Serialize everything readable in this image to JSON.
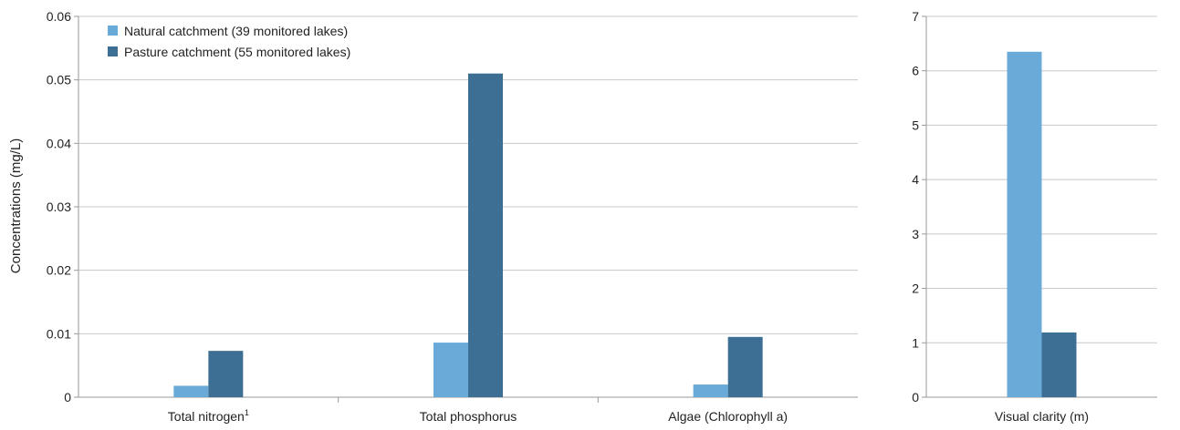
{
  "chart_data": [
    {
      "type": "bar",
      "ylabel": "Concentrations (mg/L)",
      "ylim": [
        0,
        0.06
      ],
      "yticks": [
        "0",
        "0.01",
        "0.02",
        "0.03",
        "0.04",
        "0.05",
        "0.06"
      ],
      "categories": [
        "Total nitrogen",
        "Total phosphorus",
        "Algae (Chlorophyll a)"
      ],
      "category_superscripts": [
        "1",
        "",
        ""
      ],
      "grid": true,
      "legend_position": "top-left",
      "series": [
        {
          "name": "Natural catchment (39 monitored lakes)",
          "color": "#6aaad8",
          "values": [
            0.0018,
            0.0086,
            0.002
          ]
        },
        {
          "name": "Pasture catchment (55 monitored lakes)",
          "color": "#3d6f94",
          "values": [
            0.0073,
            0.051,
            0.0095
          ]
        }
      ]
    },
    {
      "type": "bar",
      "ylim": [
        0,
        7
      ],
      "yticks": [
        "0",
        "1",
        "2",
        "3",
        "4",
        "5",
        "6",
        "7"
      ],
      "categories": [
        "Visual clarity (m)"
      ],
      "grid": true,
      "series": [
        {
          "name": "Natural catchment (39 monitored lakes)",
          "color": "#6aaad8",
          "values": [
            6.35
          ]
        },
        {
          "name": "Pasture catchment (55 monitored lakes)",
          "color": "#3d6f94",
          "values": [
            1.19
          ]
        }
      ]
    }
  ]
}
